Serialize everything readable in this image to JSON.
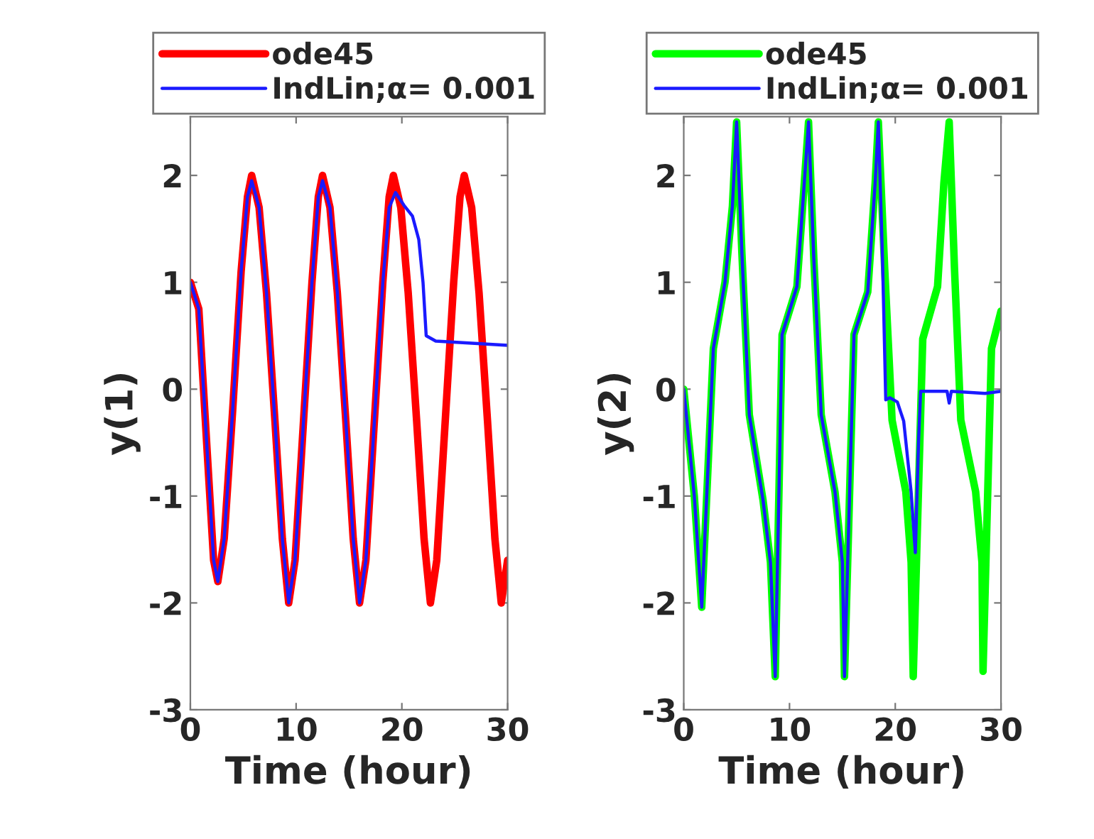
{
  "chart_data": [
    {
      "type": "line",
      "xlabel": "Time (hour)",
      "ylabel": "y(1)",
      "xlim": [
        0,
        30
      ],
      "ylim": [
        -3,
        2.55
      ],
      "xticks": [
        0,
        10,
        20,
        30
      ],
      "yticks": [
        -3,
        -2,
        -1,
        0,
        1,
        2
      ],
      "grid": false,
      "legend": "top",
      "series": [
        {
          "name": "ode45",
          "color": "#ff0000",
          "x": [
            0,
            0.8,
            1.6,
            2.2,
            2.6,
            3.2,
            4.0,
            4.8,
            5.4,
            5.8,
            6.5,
            7.2,
            8.0,
            8.7,
            9.3,
            9.9,
            10.7,
            11.5,
            12.1,
            12.5,
            13.2,
            13.9,
            14.7,
            15.4,
            16.0,
            16.6,
            17.4,
            18.2,
            18.8,
            19.2,
            19.9,
            20.6,
            21.4,
            22.1,
            22.7,
            23.3,
            24.1,
            24.9,
            25.5,
            25.9,
            26.6,
            27.3,
            28.1,
            28.8,
            29.4,
            30
          ],
          "values": [
            1,
            0.75,
            -0.6,
            -1.6,
            -1.8,
            -1.4,
            -0.2,
            1.1,
            1.8,
            2.0,
            1.7,
            0.9,
            -0.3,
            -1.4,
            -2.0,
            -1.6,
            -0.3,
            1.0,
            1.8,
            2.0,
            1.7,
            0.9,
            -0.3,
            -1.4,
            -2.0,
            -1.6,
            -0.3,
            1.0,
            1.8,
            2.0,
            1.7,
            0.9,
            -0.3,
            -1.4,
            -2.0,
            -1.6,
            -0.3,
            1.0,
            1.8,
            2.0,
            1.7,
            0.9,
            -0.3,
            -1.4,
            -2.0,
            -1.6
          ]
        },
        {
          "name": "IndLin;α= 0.001",
          "color": "#1a1aff",
          "x": [
            0,
            0.8,
            1.6,
            2.2,
            2.6,
            3.2,
            4.0,
            4.8,
            5.4,
            5.8,
            6.5,
            7.2,
            8.0,
            8.7,
            9.3,
            9.9,
            10.7,
            11.5,
            12.1,
            12.5,
            13.2,
            13.9,
            14.7,
            15.4,
            16.0,
            16.6,
            17.4,
            18.2,
            18.8,
            19.4,
            20.2,
            21.0,
            21.6,
            22.0,
            22.3,
            23.2,
            30
          ],
          "values": [
            1,
            0.75,
            -0.6,
            -1.6,
            -1.8,
            -1.4,
            -0.2,
            1.1,
            1.8,
            1.95,
            1.7,
            0.9,
            -0.3,
            -1.4,
            -2.0,
            -1.6,
            -0.3,
            1.0,
            1.8,
            1.95,
            1.7,
            0.9,
            -0.3,
            -1.4,
            -2.0,
            -1.6,
            -0.3,
            1.0,
            1.7,
            1.84,
            1.72,
            1.62,
            1.4,
            1.0,
            0.5,
            0.45,
            0.41
          ]
        }
      ]
    },
    {
      "type": "line",
      "xlabel": "Time (hour)",
      "ylabel": "y(2)",
      "xlim": [
        0,
        30
      ],
      "ylim": [
        -3,
        2.55
      ],
      "xticks": [
        0,
        10,
        20,
        30
      ],
      "yticks": [
        -3,
        -2,
        -1,
        0,
        1,
        2
      ],
      "grid": false,
      "legend": "top",
      "series": [
        {
          "name": "ode45",
          "color": "#00ff00",
          "x": [
            0,
            1.0,
            1.7,
            2.8,
            3.9,
            4.6,
            5.0,
            5.5,
            6.2,
            7.5,
            8.2,
            8.65,
            9.3,
            10.7,
            11.4,
            11.8,
            12.3,
            13.0,
            14.3,
            15.0,
            15.2,
            16.1,
            17.4,
            18.1,
            18.4,
            19.0,
            19.7,
            21.0,
            21.5,
            21.7,
            22.6,
            24.0,
            24.6,
            25.1,
            25.6,
            26.2,
            27.6,
            28.2,
            28.3,
            29.1,
            30
          ],
          "values": [
            0,
            -1.0,
            -2.04,
            0.38,
            1.0,
            1.71,
            2.5,
            1.27,
            -0.24,
            -1.04,
            -1.62,
            -2.69,
            0.51,
            0.96,
            1.93,
            2.5,
            1.22,
            -0.24,
            -0.96,
            -1.62,
            -2.69,
            0.51,
            0.91,
            1.93,
            2.5,
            1.13,
            -0.29,
            -0.96,
            -1.62,
            -2.69,
            0.47,
            0.96,
            1.93,
            2.5,
            1.13,
            -0.29,
            -0.96,
            -1.62,
            -2.64,
            0.38,
            0.73
          ]
        },
        {
          "name": "IndLin;α= 0.001",
          "color": "#1a1aff",
          "x": [
            0,
            1.0,
            1.7,
            2.8,
            3.9,
            4.6,
            5.0,
            5.5,
            6.2,
            7.5,
            8.2,
            8.65,
            9.3,
            10.7,
            11.4,
            11.8,
            12.3,
            13.0,
            14.3,
            15.0,
            15.2,
            16.1,
            17.4,
            18.1,
            18.4,
            18.8,
            19.1,
            19.5,
            20.2,
            20.8,
            21.5,
            21.9,
            22.2,
            22.4,
            24.9,
            25.1,
            25.3,
            28.5,
            30
          ],
          "values": [
            0,
            -1.0,
            -2.04,
            0.38,
            1.0,
            1.71,
            2.5,
            1.27,
            -0.24,
            -1.04,
            -1.62,
            -2.69,
            0.51,
            0.96,
            1.93,
            2.5,
            1.22,
            -0.24,
            -0.96,
            -1.62,
            -2.69,
            0.51,
            0.91,
            1.93,
            2.5,
            1.2,
            -0.1,
            -0.08,
            -0.12,
            -0.3,
            -0.96,
            -1.53,
            -0.5,
            -0.02,
            -0.02,
            -0.13,
            -0.02,
            -0.04,
            -0.02
          ]
        }
      ]
    }
  ]
}
